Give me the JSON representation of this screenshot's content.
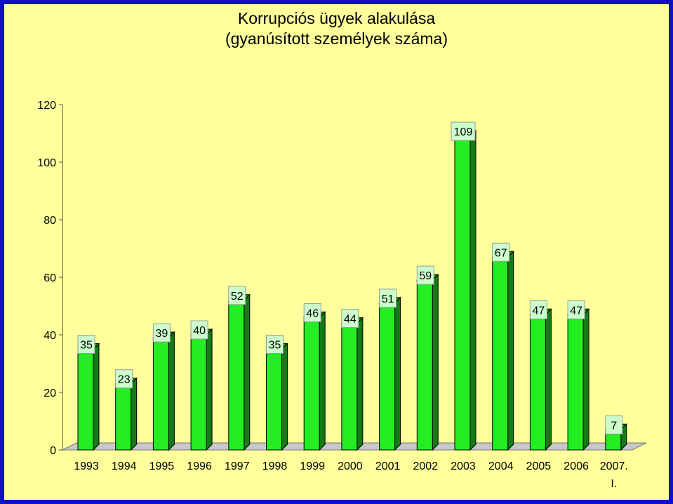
{
  "chart_data": {
    "type": "bar",
    "title": "Korrupciós ügyek alakulása",
    "subtitle": "(gyanúsított személyek száma)",
    "categories": [
      "1993",
      "1994",
      "1995",
      "1996",
      "1997",
      "1998",
      "1999",
      "2000",
      "2001",
      "2002",
      "2003",
      "2004",
      "2005",
      "2006",
      "2007. I."
    ],
    "values": [
      35,
      23,
      39,
      40,
      52,
      35,
      46,
      44,
      51,
      59,
      109,
      67,
      47,
      47,
      7
    ],
    "ylim": [
      0,
      120
    ],
    "yticks": [
      "0",
      "20",
      "40",
      "60",
      "80",
      "100",
      "120"
    ],
    "data_labels": [
      "35",
      "23",
      "39",
      "40",
      "52",
      "35",
      "46",
      "44",
      "51",
      "59",
      "109",
      "67",
      "47",
      "47",
      "7"
    ],
    "grid": false,
    "style": "3d-bar",
    "colors": {
      "bar_front": "#22ee22",
      "bar_side": "#157a15",
      "bar_top": "#119011",
      "label_box": "#ccffcc",
      "background": "#ffff9c",
      "border": "#1010c8",
      "floor": "#c8c8c8"
    }
  }
}
